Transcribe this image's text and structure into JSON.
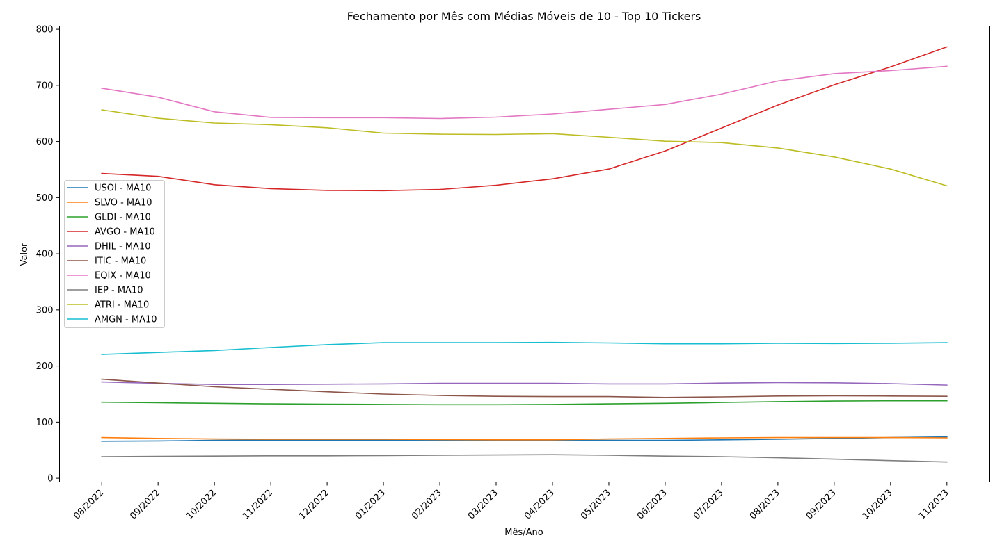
{
  "chart_data": {
    "type": "line",
    "title": "Fechamento por Mês com Médias Móveis de 10 - Top 10 Tickers",
    "xlabel": "Mês/Ano",
    "ylabel": "Valor",
    "ylim": [
      0,
      800
    ],
    "yticks": [
      "0",
      "100",
      "200",
      "300",
      "400",
      "500",
      "600",
      "700",
      "800"
    ],
    "categories": [
      "08/2022",
      "09/2022",
      "10/2022",
      "11/2022",
      "12/2022",
      "01/2023",
      "02/2023",
      "03/2023",
      "04/2023",
      "05/2023",
      "06/2023",
      "07/2023",
      "08/2023",
      "09/2023",
      "10/2023",
      "11/2023"
    ],
    "grid": false,
    "legend_position": "center-left",
    "series": [
      {
        "name": "USOI - MA10",
        "color": "#1f77b4",
        "values": [
          66,
          66.5,
          67.5,
          68,
          68,
          68,
          68,
          67.5,
          67.5,
          67.5,
          67.5,
          68.5,
          69.5,
          71,
          72.5,
          73.5
        ]
      },
      {
        "name": "SLVO - MA10",
        "color": "#ff7f0e",
        "values": [
          72.5,
          71,
          70,
          69.5,
          69.5,
          69.5,
          69,
          68.5,
          68.5,
          70,
          71,
          72,
          72.5,
          72.5,
          72.5,
          72
        ]
      },
      {
        "name": "GLDI - MA10",
        "color": "#2ca02c",
        "values": [
          135.5,
          134.5,
          133.5,
          132.5,
          132,
          131.5,
          131,
          131,
          131.5,
          132.5,
          133.5,
          135,
          136.5,
          137.5,
          138,
          138
        ]
      },
      {
        "name": "AVGO - MA10",
        "color": "#d62728",
        "values": [
          543,
          538,
          523,
          516,
          513,
          512.5,
          514.5,
          522,
          533.5,
          551,
          583,
          624,
          665,
          701,
          733,
          768.5
        ]
      },
      {
        "name": "DHIL - MA10",
        "color": "#9467bd",
        "values": [
          171.5,
          169,
          167,
          167,
          167.5,
          168,
          169,
          169,
          169,
          168,
          168,
          169.5,
          170.5,
          170,
          168.5,
          166
        ]
      },
      {
        "name": "ITIC - MA10",
        "color": "#8c564b",
        "values": [
          176.5,
          169.5,
          163,
          158.5,
          154,
          150,
          147.5,
          146,
          145.5,
          145.5,
          144,
          145,
          146.5,
          147,
          146.5,
          146
        ]
      },
      {
        "name": "EQIX - MA10",
        "color": "#e377c2",
        "values": [
          695,
          679,
          653,
          643,
          642.5,
          642.5,
          641,
          643.5,
          649,
          657.5,
          666,
          684.5,
          708,
          721,
          726.5,
          734
        ]
      },
      {
        "name": "IEP - MA10",
        "color": "#7f7f7f",
        "values": [
          38.5,
          39,
          39.5,
          40,
          40,
          40.5,
          41,
          41.5,
          42,
          41,
          39.5,
          38.5,
          36.5,
          34,
          31.5,
          29
        ]
      },
      {
        "name": "ATRI - MA10",
        "color": "#bcbd22",
        "values": [
          656.5,
          641.5,
          633,
          630,
          624.5,
          615,
          613,
          612.5,
          614,
          607.5,
          600.5,
          598,
          588.5,
          572.5,
          551,
          521
        ]
      },
      {
        "name": "AMGN - MA10",
        "color": "#17becf",
        "values": [
          220.5,
          224,
          227.5,
          233,
          238,
          241.5,
          241.5,
          241.5,
          242,
          241,
          239.5,
          239.5,
          240.5,
          240,
          240.5,
          241.5
        ]
      }
    ]
  }
}
